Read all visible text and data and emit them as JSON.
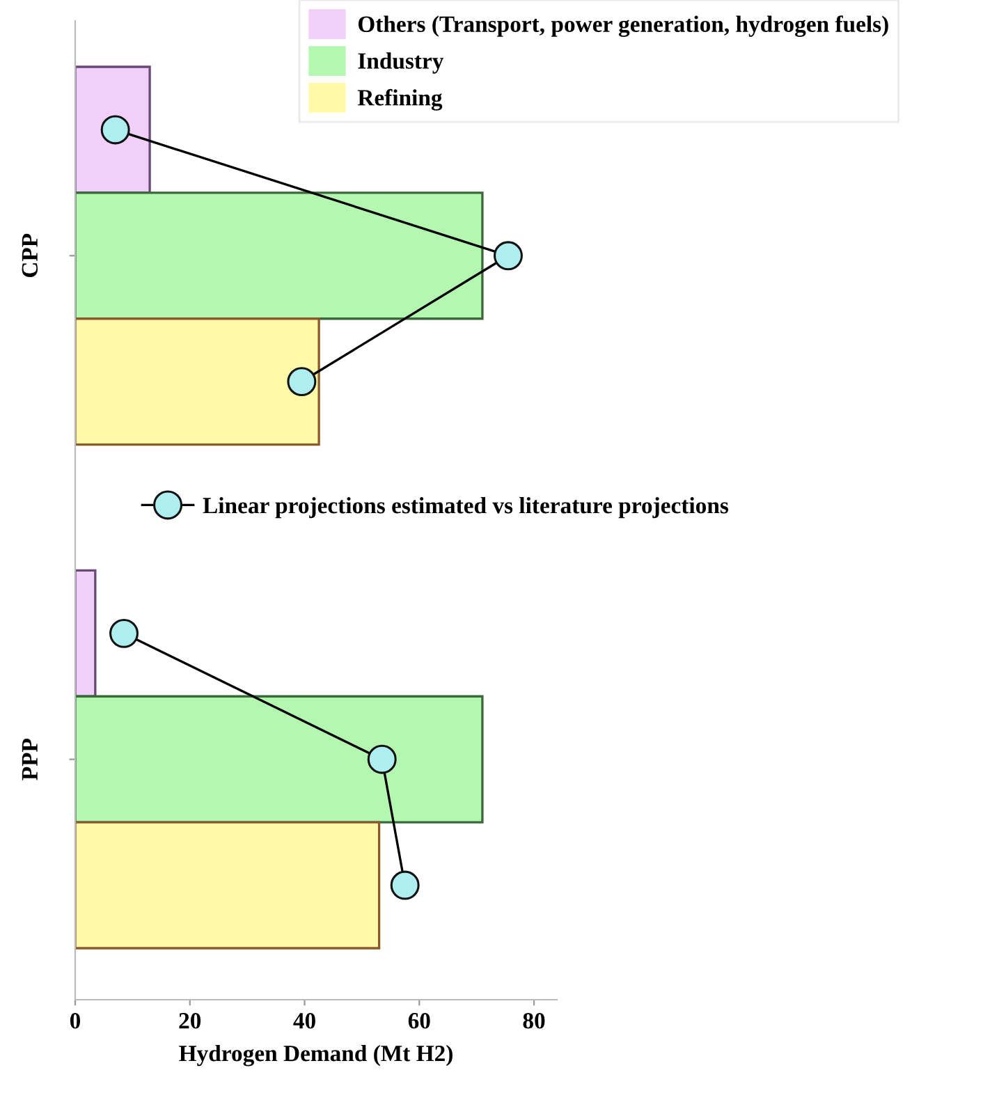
{
  "chart_data": {
    "type": "bar",
    "orientation": "horizontal",
    "xlabel": "Hydrogen Demand (Mt H2)",
    "categories": [
      null,
      "CPP",
      null,
      null,
      null,
      "PPP",
      null
    ],
    "legend": "top right",
    "xlim": [
      0,
      84
    ],
    "xticks": [
      0,
      20,
      40,
      60,
      80
    ],
    "grid": false,
    "series": [
      {
        "name": "Others (Transport, power generation, hydrogen fuels)",
        "color": "#f0d0f8",
        "values": [
          13,
          null,
          null,
          null,
          3.5,
          null,
          null
        ]
      },
      {
        "name": "Industry",
        "color": "#b3f7b0",
        "values": [
          null,
          71,
          null,
          null,
          null,
          71,
          null
        ]
      },
      {
        "name": "Refining",
        "color": "#fffaa8",
        "values": [
          null,
          null,
          42.5,
          null,
          null,
          null,
          53
        ]
      },
      {
        "type": "line",
        "values": [
          7,
          75.5,
          39.5,
          null,
          null,
          null,
          null
        ],
        "color": "#000000",
        "marker": "circle",
        "line_style": "solid"
      },
      {
        "type": "line",
        "name": "Linear projections estimated vs literature projections",
        "values": [
          null,
          null,
          null,
          null,
          8.5,
          53.5,
          57.5
        ],
        "color": "#000000",
        "marker": "circle",
        "line_style": "solid"
      }
    ]
  }
}
